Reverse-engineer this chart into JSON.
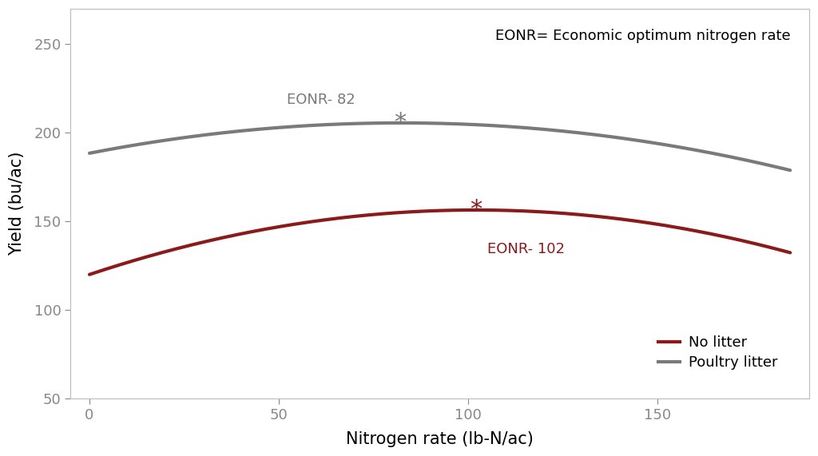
{
  "title_annotation": "EONR= Economic optimum nitrogen rate",
  "xlabel": "Nitrogen rate (lb-N/ac)",
  "ylabel": "Yield (bu/ac)",
  "ylim": [
    50,
    270
  ],
  "xlim": [
    -5,
    190
  ],
  "yticks": [
    50,
    100,
    150,
    200,
    250
  ],
  "xticks": [
    0,
    50,
    100,
    150
  ],
  "no_litter_color": "#8B1A1A",
  "poultry_litter_color": "#7a7a7a",
  "eonr_gray_label": "EONR- 82",
  "eonr_red_label": "EONR- 102",
  "eonr_gray_x": 82,
  "eonr_red_x": 102,
  "background_color": "#ffffff",
  "no_litter_coeffs": [
    120.0,
    0.714,
    -0.003499
  ],
  "poultry_litter_coeffs": [
    188.5,
    0.416,
    -0.00253
  ]
}
